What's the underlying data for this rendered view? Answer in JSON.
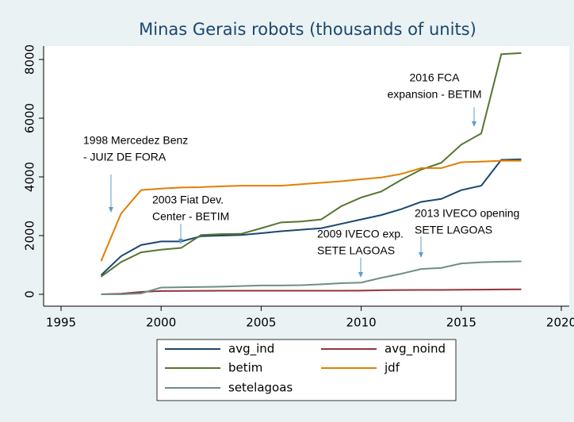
{
  "chart_data": {
    "type": "line",
    "title": "Minas Gerais  robots (thousands of  units)",
    "x": [
      1997,
      1998,
      1999,
      2000,
      2001,
      2002,
      2003,
      2004,
      2005,
      2006,
      2007,
      2008,
      2009,
      2010,
      2011,
      2012,
      2013,
      2014,
      2015,
      2016,
      2017,
      2018
    ],
    "series": [
      {
        "name": "avg_ind",
        "color": "#1a476f",
        "values": [
          650,
          1300,
          1680,
          1800,
          1800,
          1980,
          2000,
          2020,
          2080,
          2150,
          2200,
          2250,
          2400,
          2550,
          2700,
          2900,
          3150,
          3250,
          3550,
          3700,
          4580,
          4600
        ]
      },
      {
        "name": "avg_noind",
        "color": "#90353b",
        "values": [
          0,
          20,
          80,
          110,
          115,
          118,
          120,
          120,
          120,
          120,
          120,
          120,
          120,
          125,
          140,
          145,
          150,
          150,
          155,
          160,
          165,
          170
        ]
      },
      {
        "name": "betim",
        "color": "#55752f",
        "values": [
          600,
          1100,
          1430,
          1520,
          1580,
          2020,
          2050,
          2060,
          2250,
          2450,
          2480,
          2550,
          3000,
          3300,
          3500,
          3900,
          4250,
          4480,
          5100,
          5480,
          8180,
          8220
        ]
      },
      {
        "name": "jdf",
        "color": "#e37e00",
        "values": [
          1130,
          2750,
          3550,
          3600,
          3640,
          3650,
          3680,
          3700,
          3700,
          3700,
          3750,
          3800,
          3850,
          3920,
          3980,
          4100,
          4300,
          4300,
          4500,
          4520,
          4550,
          4550
        ]
      },
      {
        "name": "setelagoas",
        "color": "#6e8e84",
        "values": [
          0,
          0,
          30,
          230,
          240,
          250,
          260,
          280,
          300,
          300,
          310,
          340,
          380,
          400,
          560,
          700,
          860,
          900,
          1050,
          1090,
          1110,
          1120
        ]
      }
    ],
    "xlim": [
      1995,
      2020
    ],
    "xticks": [
      1995,
      2000,
      2005,
      2010,
      2015,
      2020
    ],
    "ylim": [
      0,
      8000
    ],
    "yticks": [
      0,
      2000,
      4000,
      6000,
      8000
    ],
    "annotations": [
      [
        "1998 Mercedez Benz",
        "- JUIZ DE FORA"
      ],
      [
        "2003 Fiat Dev.",
        "Center - BETIM"
      ],
      [
        "2009 IVECO exp.",
        "SETE LAGOAS"
      ],
      [
        "2013 IVECO opening",
        "SETE LAGOAS"
      ],
      [
        "2016 FCA",
        "expansion - BETIM"
      ]
    ]
  }
}
